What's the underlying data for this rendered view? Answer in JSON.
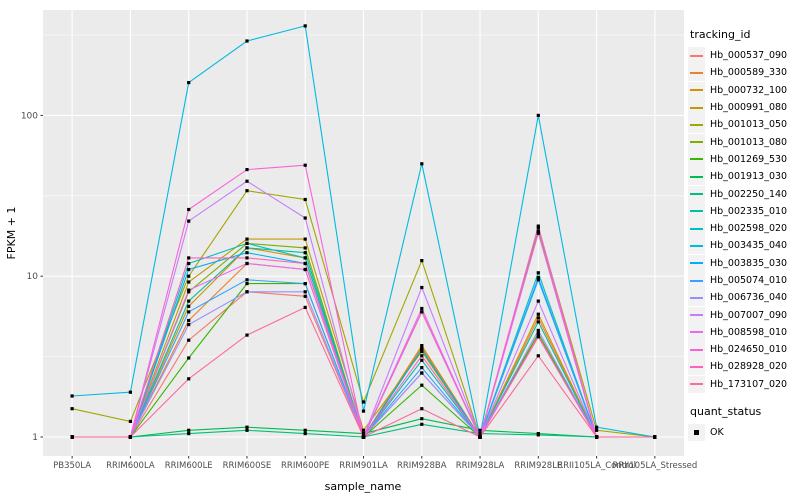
{
  "figure": {
    "background": "#FFFFFF",
    "panel_background": "#EBEBEB",
    "grid_color": "#FFFFFF",
    "axis_tick_color": "#333333",
    "axis_text_color": "#4D4D4D",
    "point_color": "#000000",
    "legend_key_background": "#F2F2F2"
  },
  "chart_data": {
    "type": "line",
    "title": "",
    "xlabel": "sample_name",
    "ylabel": "FPKM + 1",
    "yscale": "log10",
    "ylim": [
      1,
      400
    ],
    "y_ticks": [
      1,
      10,
      100
    ],
    "y_tick_labels": [
      "1",
      "10",
      "100"
    ],
    "grid": "major-and-minor",
    "legend_position": "right",
    "legend_title": "tracking_id",
    "quant_legend": {
      "title": "quant_status",
      "items": [
        "OK"
      ]
    },
    "x_categories": [
      "PB350LA",
      "RRIM600LA",
      "RRIM600LE",
      "RRIM600SE",
      "RRIM600PE",
      "RRIM901LA",
      "RRIM928BA",
      "RRIM928LA",
      "RRIM928LE",
      "RRII105LA_Control",
      "RRII105LA_Stressed"
    ],
    "series": [
      {
        "name": "Hb_000537_090",
        "color": "#F8766D",
        "values": [
          1,
          1,
          4.0,
          8.0,
          7.5,
          1,
          2.5,
          1,
          4.3,
          1,
          1
        ]
      },
      {
        "name": "Hb_000589_330",
        "color": "#EA8331",
        "values": [
          1,
          1,
          5.3,
          12,
          11,
          1,
          3.6,
          1,
          5.5,
          1,
          1
        ]
      },
      {
        "name": "Hb_000732_100",
        "color": "#D89000",
        "values": [
          1,
          1,
          6.5,
          15,
          13,
          1,
          3.7,
          1,
          5.8,
          1,
          1
        ]
      },
      {
        "name": "Hb_000991_080",
        "color": "#C09B00",
        "values": [
          1,
          1,
          9.2,
          17,
          17,
          1.1,
          3.4,
          1,
          19,
          1,
          1
        ]
      },
      {
        "name": "Hb_001013_050",
        "color": "#A3A500",
        "values": [
          1.5,
          1.25,
          10,
          34,
          30,
          1.65,
          12.5,
          1,
          20,
          1.1,
          1
        ]
      },
      {
        "name": "Hb_001013_080",
        "color": "#7CAE00",
        "values": [
          1,
          1,
          8.0,
          16,
          15,
          1,
          6.0,
          1,
          19,
          1,
          1
        ]
      },
      {
        "name": "Hb_001269_530",
        "color": "#39B600",
        "values": [
          1,
          1,
          3.1,
          9.0,
          9.0,
          1,
          2.1,
          1,
          4.4,
          1,
          1
        ]
      },
      {
        "name": "Hb_001913_030",
        "color": "#00BB4E",
        "values": [
          1,
          1,
          1.1,
          1.15,
          1.1,
          1.05,
          1.3,
          1.1,
          1.05,
          1,
          1
        ]
      },
      {
        "name": "Hb_002250_140",
        "color": "#00BF7D",
        "values": [
          1,
          1,
          1.05,
          1.1,
          1.05,
          1,
          1.2,
          1.05,
          1.03,
          1,
          1
        ]
      },
      {
        "name": "Hb_002335_010",
        "color": "#00C1A3",
        "values": [
          1,
          1,
          7.0,
          15,
          14,
          1,
          3.0,
          1,
          5.2,
          1,
          1
        ]
      },
      {
        "name": "Hb_002598_020",
        "color": "#00BFC4",
        "values": [
          1,
          1,
          12,
          16,
          13,
          1,
          3.5,
          1,
          10.5,
          1,
          1
        ]
      },
      {
        "name": "Hb_003435_040",
        "color": "#00BAE0",
        "values": [
          1.8,
          1.9,
          160,
          290,
          360,
          1.45,
          50,
          1,
          100,
          1.15,
          1
        ]
      },
      {
        "name": "Hb_003835_030",
        "color": "#00B0F6",
        "values": [
          1,
          1,
          11,
          14,
          12,
          1,
          3.5,
          1,
          9.5,
          1,
          1
        ]
      },
      {
        "name": "Hb_005074_010",
        "color": "#35A2FF",
        "values": [
          1,
          1,
          6.0,
          9.5,
          9.0,
          1,
          2.7,
          1,
          9.8,
          1,
          1
        ]
      },
      {
        "name": "Hb_006736_040",
        "color": "#9590FF",
        "values": [
          1,
          1,
          5.0,
          8.0,
          8.0,
          1,
          2.5,
          1,
          4.6,
          1,
          1
        ]
      },
      {
        "name": "Hb_007007_090",
        "color": "#C77CFF",
        "values": [
          1,
          1,
          22,
          39,
          23,
          1,
          8.5,
          1,
          7.0,
          1,
          1
        ]
      },
      {
        "name": "Hb_008598_010",
        "color": "#E76BF3",
        "values": [
          1,
          1,
          8.2,
          12,
          11,
          1,
          6.3,
          1,
          18.5,
          1,
          1
        ]
      },
      {
        "name": "Hb_024650_010",
        "color": "#FA62DB",
        "values": [
          1,
          1,
          26,
          46,
          49,
          1,
          6.0,
          1,
          20.5,
          1,
          1
        ]
      },
      {
        "name": "Hb_028928_020",
        "color": "#FF62BC",
        "values": [
          1,
          1,
          13,
          13,
          12,
          1,
          3.2,
          1,
          4.2,
          1,
          1
        ]
      },
      {
        "name": "Hb_173107_020",
        "color": "#FF6A98",
        "values": [
          1,
          1,
          2.3,
          4.3,
          6.4,
          1,
          1.5,
          1,
          3.2,
          1,
          1
        ]
      }
    ]
  }
}
